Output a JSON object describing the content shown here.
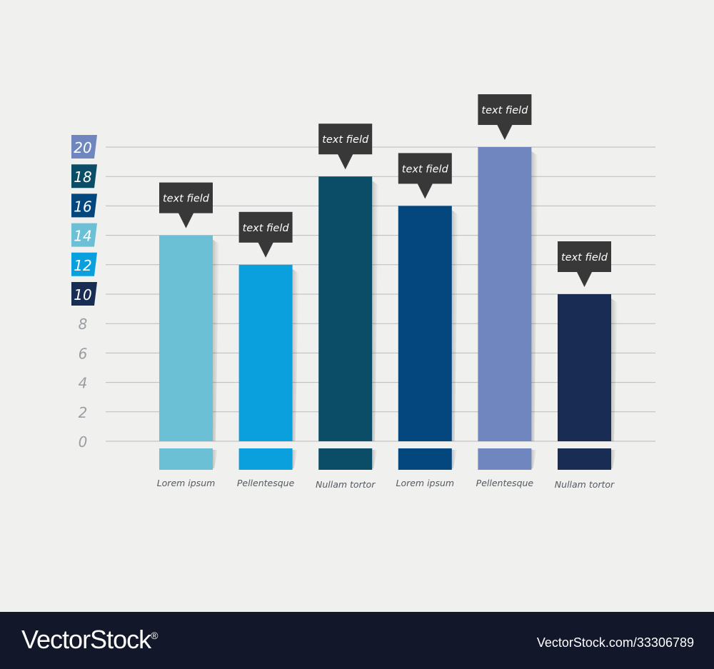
{
  "chart_data": {
    "type": "bar",
    "categories": [
      "Lorem ipsum",
      "Pellentesque",
      "Nullam tortor",
      "Lorem ipsum",
      "Pellentesque",
      "Nullam tortor"
    ],
    "values": [
      14,
      12,
      18,
      16,
      20,
      10
    ],
    "bar_colors": [
      "#6cc0d6",
      "#0aa0dd",
      "#0b4d66",
      "#04477f",
      "#6f86bf",
      "#182c54"
    ],
    "callout_label": "text field",
    "callout_color": "#383838",
    "ylim": [
      0,
      20
    ],
    "yticks": [
      0,
      2,
      4,
      6,
      8,
      10,
      12,
      14,
      16,
      18,
      20
    ],
    "ytick_box_colors": {
      "20": "#6f86bf",
      "18": "#0b4d66",
      "16": "#04477f",
      "14": "#6cc0d6",
      "12": "#0aa0dd",
      "10": "#182c54"
    },
    "grid": true,
    "title": "",
    "xlabel": "",
    "ylabel": ""
  },
  "watermark": {
    "brand": "VectorStock",
    "registered": "®",
    "url": "VectorStock.com/33306789"
  }
}
